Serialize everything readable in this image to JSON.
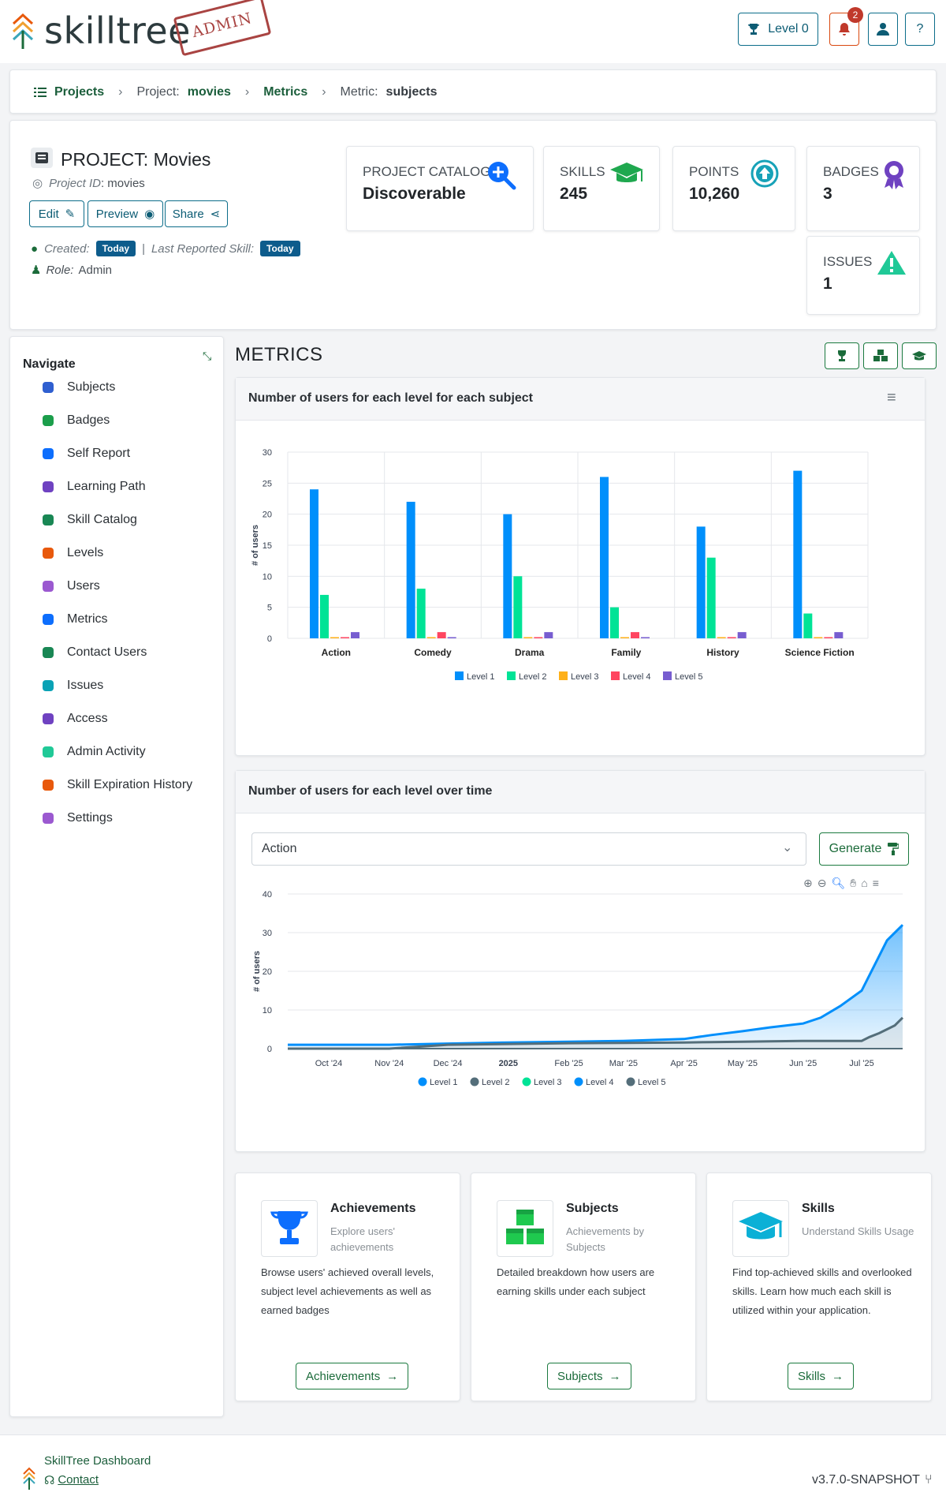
{
  "header": {
    "logo_text": "skilltree",
    "stamp_text": "ADMIN",
    "level_label": "Level 0",
    "notification_count": "2",
    "help_label": "?"
  },
  "breadcrumb": {
    "projects": "Projects",
    "project_prefix": "Project:",
    "project_name": "movies",
    "metrics": "Metrics",
    "metric_prefix": "Metric:",
    "metric_name": "subjects"
  },
  "project": {
    "title": "PROJECT: Movies",
    "id_label": "Project ID",
    "id_value": ": movies",
    "edit_label": "Edit",
    "preview_label": "Preview",
    "share_label": "Share",
    "created_label": "Created:",
    "created_value": "Today",
    "last_reported_label": "Last Reported Skill:",
    "last_reported_value": "Today",
    "role_label": "Role:",
    "role_value": "Admin"
  },
  "stats": {
    "catalog_label": "PROJECT CATALOG",
    "catalog_value": "Discoverable",
    "skills_label": "SKILLS",
    "skills_value": "245",
    "points_label": "POINTS",
    "points_value": "10,260",
    "badges_label": "BADGES",
    "badges_value": "3",
    "issues_label": "ISSUES",
    "issues_value": "1"
  },
  "nav": {
    "title": "Navigate",
    "items": [
      {
        "label": "Subjects",
        "icon": "subjects-icon",
        "color": "#2f5fd0"
      },
      {
        "label": "Badges",
        "icon": "badge-icon",
        "color": "#1b9e4b"
      },
      {
        "label": "Self Report",
        "icon": "laptop-icon",
        "color": "#0d6efd"
      },
      {
        "label": "Learning Path",
        "icon": "network-icon",
        "color": "#6f42c1"
      },
      {
        "label": "Skill Catalog",
        "icon": "book-icon",
        "color": "#198754"
      },
      {
        "label": "Levels",
        "icon": "trophy-icon",
        "color": "#e8590c"
      },
      {
        "label": "Users",
        "icon": "users-icon",
        "color": "#9b59d0"
      },
      {
        "label": "Metrics",
        "icon": "chart-icon",
        "color": "#0d6efd"
      },
      {
        "label": "Contact Users",
        "icon": "mail-bulk-icon",
        "color": "#198754"
      },
      {
        "label": "Issues",
        "icon": "warning-icon",
        "color": "#0aa2b5"
      },
      {
        "label": "Access",
        "icon": "shield-icon",
        "color": "#6f42c1"
      },
      {
        "label": "Admin Activity",
        "icon": "users-cog-icon",
        "color": "#20c997"
      },
      {
        "label": "Skill Expiration History",
        "icon": "clock-icon",
        "color": "#e8590c"
      },
      {
        "label": "Settings",
        "icon": "cogs-icon",
        "color": "#9b59d0"
      }
    ]
  },
  "metrics": {
    "title": "METRICS"
  },
  "chart1": {
    "title": "Number of users for each level for each subject"
  },
  "chart2": {
    "title": "Number of users for each level over time",
    "select_value": "Action",
    "generate_label": "Generate"
  },
  "chart_data": [
    {
      "type": "bar",
      "title": "Number of users for each level for each subject",
      "ylabel": "# of users",
      "xlabel": "",
      "ylim": [
        0,
        30
      ],
      "yticks": [
        0,
        5,
        10,
        15,
        20,
        25,
        30
      ],
      "categories": [
        "Action",
        "Comedy",
        "Drama",
        "Family",
        "History",
        "Science Fiction"
      ],
      "series": [
        {
          "name": "Level 1",
          "color": "#008ffb",
          "values": [
            24,
            22,
            20,
            26,
            18,
            27
          ]
        },
        {
          "name": "Level 2",
          "color": "#00e396",
          "values": [
            7,
            8,
            10,
            5,
            13,
            4
          ]
        },
        {
          "name": "Level 3",
          "color": "#feb019",
          "values": [
            0,
            0,
            0,
            0,
            0,
            0
          ]
        },
        {
          "name": "Level 4",
          "color": "#ff4560",
          "values": [
            0,
            1,
            0,
            1,
            0,
            0
          ]
        },
        {
          "name": "Level 5",
          "color": "#775dd0",
          "values": [
            1,
            0,
            1,
            0,
            1,
            1
          ]
        }
      ],
      "legend": "bottom"
    },
    {
      "type": "area",
      "title": "Number of users for each level over time",
      "ylabel": "# of users",
      "ylim": [
        0,
        40
      ],
      "yticks": [
        0,
        10,
        20,
        30,
        40
      ],
      "xticks": [
        "Oct '24",
        "Nov '24",
        "Dec '24",
        "2025",
        "Feb '25",
        "Mar '25",
        "Apr '25",
        "May '25",
        "Jun '25",
        "Jul '25"
      ],
      "x": [
        "2024-09-10",
        "2024-10-01",
        "2024-11-01",
        "2024-12-01",
        "2025-01-01",
        "2025-02-01",
        "2025-03-01",
        "2025-04-01",
        "2025-04-15",
        "2025-05-01",
        "2025-05-15",
        "2025-06-01",
        "2025-06-10",
        "2025-06-20",
        "2025-07-01",
        "2025-07-05",
        "2025-07-10",
        "2025-07-14",
        "2025-07-18",
        "2025-07-22"
      ],
      "series": [
        {
          "name": "Level 1",
          "color": "#008ffb",
          "values": [
            1,
            1,
            1,
            1.3,
            1.6,
            1.8,
            2,
            2.5,
            3.5,
            4.5,
            5.5,
            6.5,
            8,
            11,
            15,
            19,
            24,
            28,
            30,
            32
          ]
        },
        {
          "name": "Level 2",
          "color": "#546e7a",
          "values": [
            0,
            0,
            0,
            1,
            1.2,
            1.4,
            1.5,
            1.6,
            1.7,
            1.8,
            1.9,
            2,
            2,
            2,
            2,
            3,
            4,
            5,
            6,
            8
          ]
        },
        {
          "name": "Level 3",
          "color": "#00e396",
          "values": [
            0,
            0,
            0,
            0,
            0,
            0,
            0,
            0,
            0,
            0,
            0,
            0,
            0,
            0,
            0,
            0,
            0,
            0,
            0,
            0
          ]
        },
        {
          "name": "Level 4",
          "color": "#008ffb",
          "values": [
            0,
            0,
            0,
            0,
            0,
            0,
            0,
            0,
            0,
            0,
            0,
            0,
            0,
            0,
            0,
            0,
            0,
            0,
            0,
            0
          ]
        },
        {
          "name": "Level 5",
          "color": "#546e7a",
          "values": [
            0,
            0,
            0,
            0,
            0,
            0,
            0,
            0,
            0,
            0,
            0,
            0,
            0,
            0,
            0,
            0,
            0,
            0,
            0,
            0
          ]
        }
      ],
      "legend": "bottom"
    }
  ],
  "features": [
    {
      "title": "Achievements",
      "subtitle": "Explore users' achievements",
      "desc": "Browse users' achieved overall levels, subject level achievements as well as earned badges",
      "button": "Achievements",
      "icon": "trophy-icon"
    },
    {
      "title": "Subjects",
      "subtitle": "Achievements by Subjects",
      "desc": "Detailed breakdown how users are earning skills under each subject",
      "button": "Subjects",
      "icon": "cubes-icon"
    },
    {
      "title": "Skills",
      "subtitle": "Understand Skills Usage",
      "desc": "Find top-achieved skills and overlooked skills. Learn how much each skill is utilized within your application.",
      "button": "Skills",
      "icon": "graduation-cap-icon"
    }
  ],
  "footer": {
    "dashboard_label": "SkillTree Dashboard",
    "contact_label": "Contact",
    "version": "v3.7.0-SNAPSHOT"
  }
}
